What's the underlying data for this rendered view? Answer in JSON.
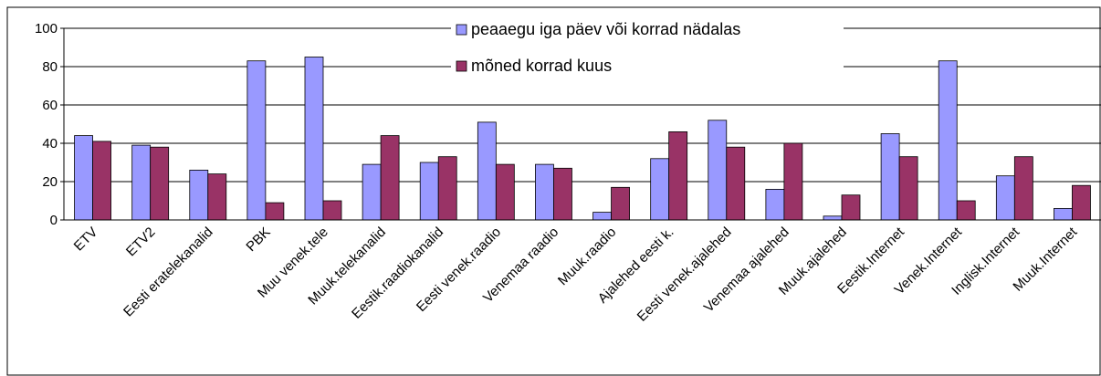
{
  "chart_data": {
    "type": "bar",
    "categories": [
      "ETV",
      "ETV2",
      "Eesti eratelekanalid",
      "PBK",
      "Muu venek.tele",
      "Muuk.telekanalid",
      "Eestik.raadiokanalid",
      "Eesti venek.raadio",
      "Venemaa raadio",
      "Muuk.raadio",
      "Ajalehed eesti k.",
      "Eesti venek.ajalehed",
      "Venemaa ajalehed",
      "Muuk.ajalehed",
      "Eestik.Internet",
      "Venek.Internet",
      "Inglisk.Internet",
      "Muuk.Internet"
    ],
    "series": [
      {
        "name": "peaaegu iga päev või korrad nädalas",
        "color": "#9999ff",
        "values": [
          44,
          39,
          26,
          83,
          85,
          29,
          30,
          51,
          29,
          4,
          32,
          52,
          16,
          2,
          45,
          83,
          23,
          6
        ]
      },
      {
        "name": "mõned korrad kuus",
        "color": "#993366",
        "values": [
          41,
          38,
          24,
          9,
          10,
          44,
          33,
          29,
          27,
          17,
          46,
          38,
          40,
          13,
          33,
          10,
          33,
          18
        ]
      }
    ],
    "ylim": [
      0,
      100
    ],
    "yticks": [
      0,
      20,
      40,
      60,
      80,
      100
    ],
    "grid": true
  }
}
